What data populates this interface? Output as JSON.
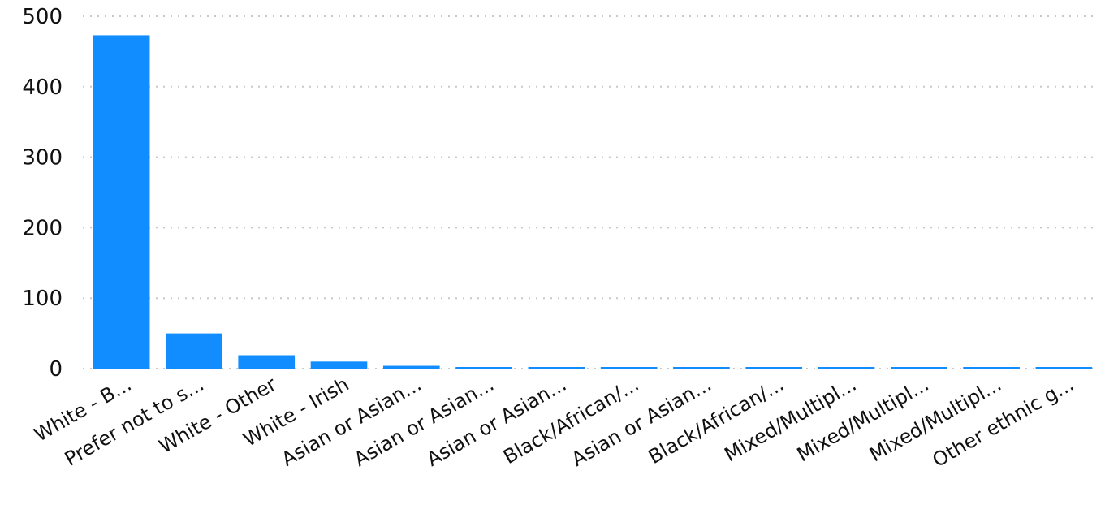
{
  "colors": {
    "bar": "#118DFF",
    "grid": "#C8C8C8",
    "text": "#111111"
  },
  "chart_data": {
    "type": "bar",
    "title": "",
    "xlabel": "",
    "ylabel": "",
    "ylim": [
      0,
      500
    ],
    "yticks": [
      0,
      100,
      200,
      300,
      400,
      500
    ],
    "grid": true,
    "categories": [
      "White - B...",
      "Prefer not to s...",
      "White - Other",
      "White - Irish",
      "Asian or Asian...",
      "Asian or Asian...",
      "Asian or Asian...",
      "Black/African/...",
      "Asian or Asian...",
      "Black/African/...",
      "Mixed/Multipl...",
      "Mixed/Multipl...",
      "Mixed/Multipl...",
      "Other ethnic g..."
    ],
    "values": [
      473,
      50,
      19,
      10,
      4,
      2,
      2,
      2,
      2,
      2,
      2,
      2,
      2,
      2
    ]
  }
}
